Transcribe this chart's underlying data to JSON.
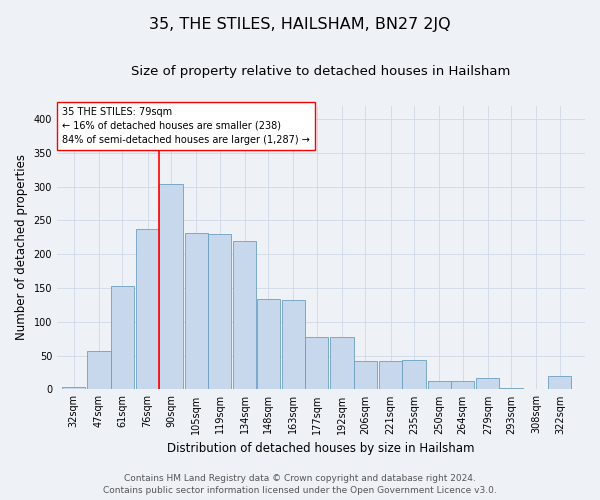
{
  "title": "35, THE STILES, HAILSHAM, BN27 2JQ",
  "subtitle": "Size of property relative to detached houses in Hailsham",
  "xlabel": "Distribution of detached houses by size in Hailsham",
  "ylabel": "Number of detached properties",
  "footer_line1": "Contains HM Land Registry data © Crown copyright and database right 2024.",
  "footer_line2": "Contains public sector information licensed under the Open Government Licence v3.0.",
  "bin_labels": [
    "32sqm",
    "47sqm",
    "61sqm",
    "76sqm",
    "90sqm",
    "105sqm",
    "119sqm",
    "134sqm",
    "148sqm",
    "163sqm",
    "177sqm",
    "192sqm",
    "206sqm",
    "221sqm",
    "235sqm",
    "250sqm",
    "264sqm",
    "279sqm",
    "293sqm",
    "308sqm",
    "322sqm"
  ],
  "bin_centers": [
    32,
    47,
    61,
    76,
    90,
    105,
    119,
    134,
    148,
    163,
    177,
    192,
    206,
    221,
    235,
    250,
    264,
    279,
    293,
    308,
    322
  ],
  "bar_values": [
    3,
    57,
    153,
    238,
    304,
    231,
    230,
    219,
    134,
    133,
    78,
    77,
    42,
    42,
    43,
    13,
    13,
    17,
    2,
    1,
    20
  ],
  "bar_color": "#c8d8ec",
  "bar_edge_color": "#6a9fc0",
  "annotation_line1": "35 THE STILES: 79sqm",
  "annotation_line2": "← 16% of detached houses are smaller (238)",
  "annotation_line3": "84% of semi-detached houses are larger (1,287) →",
  "red_line_x": 83,
  "ylim": [
    0,
    420
  ],
  "xlim_min": 22,
  "xlim_max": 337,
  "bin_width": 14.0,
  "background_color": "#eef2f7",
  "grid_color": "#d0d8e8",
  "title_fontsize": 11.5,
  "subtitle_fontsize": 9.5,
  "axis_label_fontsize": 8.5,
  "tick_fontsize": 7,
  "footer_fontsize": 6.5,
  "yticks": [
    0,
    50,
    100,
    150,
    200,
    250,
    300,
    350,
    400
  ]
}
